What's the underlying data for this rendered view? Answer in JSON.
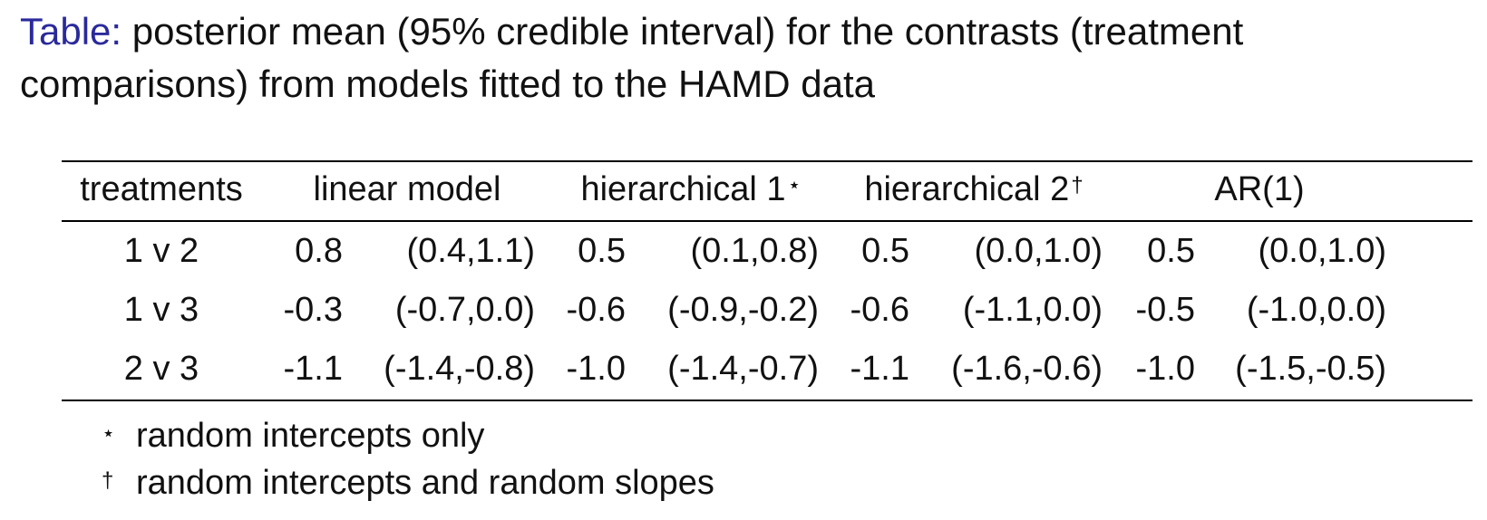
{
  "caption": {
    "label": "Table:",
    "text": " posterior mean (95% credible interval) for the contrasts (treatment comparisons) from models fitted to the HAMD data"
  },
  "table": {
    "headers": {
      "treatments": "treatments",
      "linear": "linear model",
      "hier1": "hierarchical 1",
      "hier1_mark": "⋆",
      "hier2": "hierarchical 2",
      "hier2_mark": "†",
      "ar1": "AR(1)"
    },
    "rows": [
      {
        "treatments": "1 v 2",
        "linear_mean": "0.8",
        "linear_ci": "(0.4,1.1)",
        "hier1_mean": "0.5",
        "hier1_ci": "(0.1,0.8)",
        "hier2_mean": "0.5",
        "hier2_ci": "(0.0,1.0)",
        "ar1_mean": "0.5",
        "ar1_ci": "(0.0,1.0)"
      },
      {
        "treatments": "1 v 3",
        "linear_mean": "-0.3",
        "linear_ci": "(-0.7,0.0)",
        "hier1_mean": "-0.6",
        "hier1_ci": "(-0.9,-0.2)",
        "hier2_mean": "-0.6",
        "hier2_ci": "(-1.1,0.0)",
        "ar1_mean": "-0.5",
        "ar1_ci": "(-1.0,0.0)"
      },
      {
        "treatments": "2 v 3",
        "linear_mean": "-1.1",
        "linear_ci": "(-1.4,-0.8)",
        "hier1_mean": "-1.0",
        "hier1_ci": "(-1.4,-0.7)",
        "hier2_mean": "-1.1",
        "hier2_ci": "(-1.6,-0.6)",
        "ar1_mean": "-1.0",
        "ar1_ci": "(-1.5,-0.5)"
      }
    ]
  },
  "footnotes": [
    {
      "symbol": "⋆",
      "text": "random intercepts only"
    },
    {
      "symbol": "†",
      "text": "random intercepts and random slopes"
    }
  ]
}
